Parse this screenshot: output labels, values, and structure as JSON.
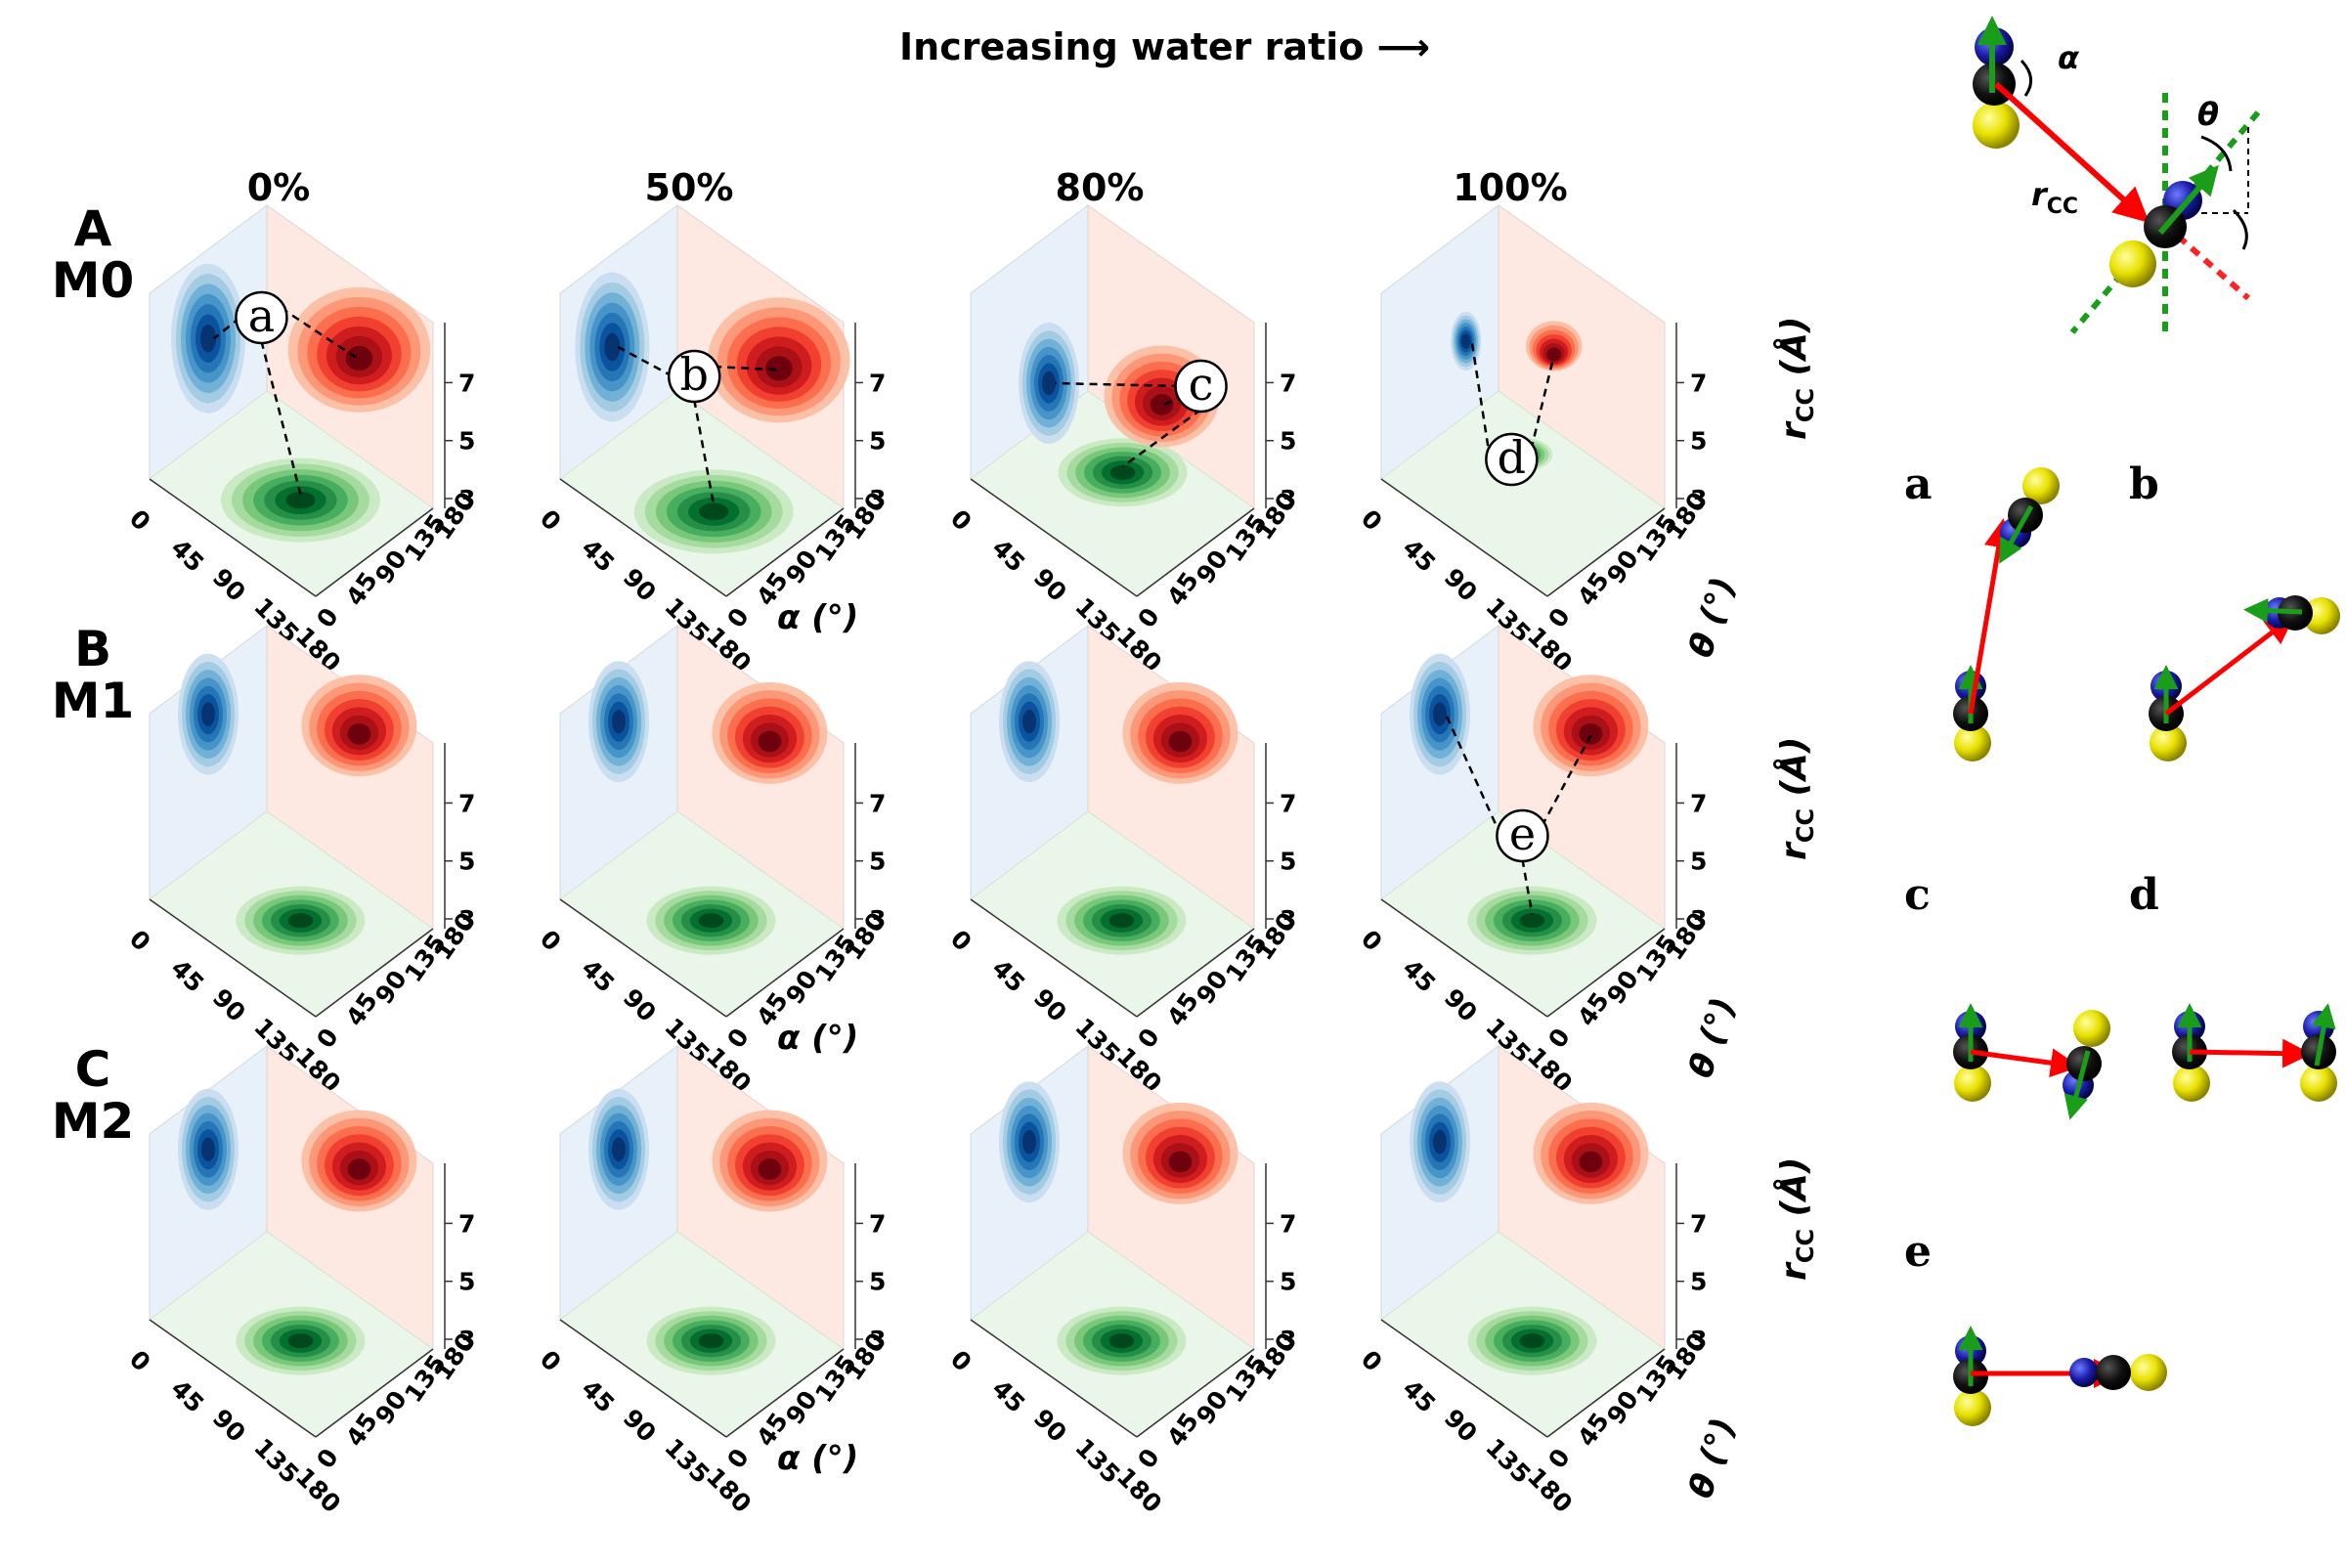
{
  "header": {
    "title": "Increasing water ratio ⟶"
  },
  "columns": [
    "0%",
    "50%",
    "80%",
    "100%"
  ],
  "rows": [
    {
      "letter": "A",
      "model": "M0"
    },
    {
      "letter": "B",
      "model": "M1"
    },
    {
      "letter": "C",
      "model": "M2"
    }
  ],
  "axes": {
    "alpha_title": "α (°)",
    "theta_title": "θ (°)",
    "rcc_title": "r",
    "rcc_sub": "CC",
    "rcc_unit": " (Å)"
  },
  "schematic": {
    "alpha": "α",
    "theta": "θ",
    "r": "r",
    "rsub": "CC"
  },
  "callouts": [
    "a",
    "b",
    "c",
    "d",
    "e"
  ],
  "configs": [
    "a",
    "b",
    "c",
    "d",
    "e"
  ],
  "colors": {
    "blue": "#2171b5",
    "red": "#cb181d",
    "green": "#238b45",
    "blue_bg": "#e8f1fa",
    "red_bg": "#fde9e2",
    "green_bg": "#ebf6ea"
  },
  "chart_data": {
    "type": "heatmap",
    "description_axes": {
      "x": {
        "label": "α (°)",
        "ticks": [
          0,
          45,
          90,
          135,
          180
        ],
        "range": [
          0,
          180
        ]
      },
      "y": {
        "label": "θ (°)",
        "ticks": [
          0,
          45,
          90,
          135,
          180
        ],
        "range": [
          0,
          180
        ]
      },
      "z": {
        "label": "r_CC (Å)",
        "ticks": [
          3,
          5,
          7
        ],
        "range": [
          3,
          8
        ]
      }
    },
    "water_ratios": [
      "0%",
      "50%",
      "80%",
      "100%"
    ],
    "models": [
      "M0",
      "M1",
      "M2"
    ],
    "panels": [
      {
        "model": "M0",
        "ratio": "0%",
        "alpha_peak": 100,
        "theta_peak": 90,
        "rcc_peak": 5.6,
        "spread": "broad",
        "callout": "a"
      },
      {
        "model": "M0",
        "ratio": "50%",
        "alpha_peak": 110,
        "theta_peak": 80,
        "rcc_peak": 5.5,
        "spread": "broad",
        "callout": "b"
      },
      {
        "model": "M0",
        "ratio": "80%",
        "alpha_peak": 80,
        "theta_peak": 120,
        "rcc_peak": 4.0,
        "spread": "medium",
        "callout": "c"
      },
      {
        "model": "M0",
        "ratio": "100%",
        "alpha_peak": 60,
        "theta_peak": 130,
        "rcc_peak": 5.0,
        "spread": "narrow",
        "callout": "d"
      },
      {
        "model": "M1",
        "ratio": "0%",
        "alpha_peak": 100,
        "theta_peak": 90,
        "rcc_peak": 6.8,
        "spread": "medium"
      },
      {
        "model": "M1",
        "ratio": "50%",
        "alpha_peak": 100,
        "theta_peak": 90,
        "rcc_peak": 6.6,
        "spread": "medium"
      },
      {
        "model": "M1",
        "ratio": "80%",
        "alpha_peak": 100,
        "theta_peak": 90,
        "rcc_peak": 6.6,
        "spread": "medium"
      },
      {
        "model": "M1",
        "ratio": "100%",
        "alpha_peak": 100,
        "theta_peak": 90,
        "rcc_peak": 6.8,
        "spread": "medium",
        "callout": "e"
      },
      {
        "model": "M2",
        "ratio": "0%",
        "alpha_peak": 100,
        "theta_peak": 90,
        "rcc_peak": 6.4,
        "spread": "medium"
      },
      {
        "model": "M2",
        "ratio": "50%",
        "alpha_peak": 100,
        "theta_peak": 90,
        "rcc_peak": 6.4,
        "spread": "medium"
      },
      {
        "model": "M2",
        "ratio": "80%",
        "alpha_peak": 100,
        "theta_peak": 90,
        "rcc_peak": 6.6,
        "spread": "medium"
      },
      {
        "model": "M2",
        "ratio": "100%",
        "alpha_peak": 100,
        "theta_peak": 90,
        "rcc_peak": 6.6,
        "spread": "medium"
      }
    ]
  }
}
